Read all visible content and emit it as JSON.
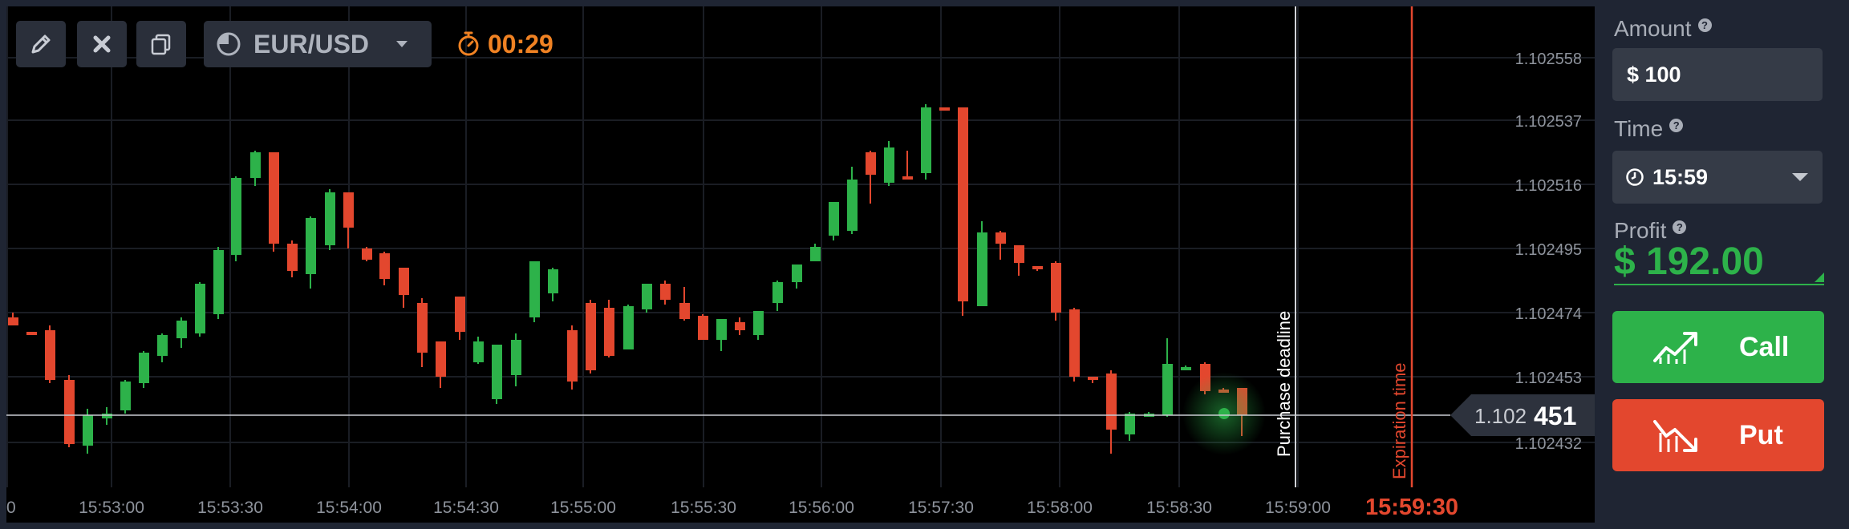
{
  "toolbar": {
    "items": [
      "pencil-icon",
      "close-icon",
      "copy-icon",
      "pie-icon"
    ],
    "pair": "EUR/USD",
    "timer": "00:29"
  },
  "chart": {
    "price_labels": [
      "1.102558",
      "1.102537",
      "1.102516",
      "1.102495",
      "1.102474",
      "1.102453",
      "1.102432"
    ],
    "time_labels": [
      "0",
      "15:53:00",
      "15:53:30",
      "15:54:00",
      "15:54:30",
      "15:55:00",
      "15:55:30",
      "15:56:00",
      "15:57:30",
      "15:58:00",
      "15:58:30",
      "15:59:00"
    ],
    "expiration_time_label": "15:59:30",
    "purchase_deadline": "Purchase deadline",
    "expiration_time": "Expiration time",
    "current_price_prefix": "1.102",
    "current_price_suffix": "451",
    "colors": {
      "up": "#2db24a",
      "down": "#e3472e",
      "timer": "#f08223"
    }
  },
  "panel": {
    "amount_label": "Amount",
    "amount_value": "$ 100",
    "time_label": "Time",
    "time_value": "15:59",
    "profit_label": "Profit",
    "profit_value": "$ 192.00",
    "call_label": "Call",
    "put_label": "Put"
  }
}
